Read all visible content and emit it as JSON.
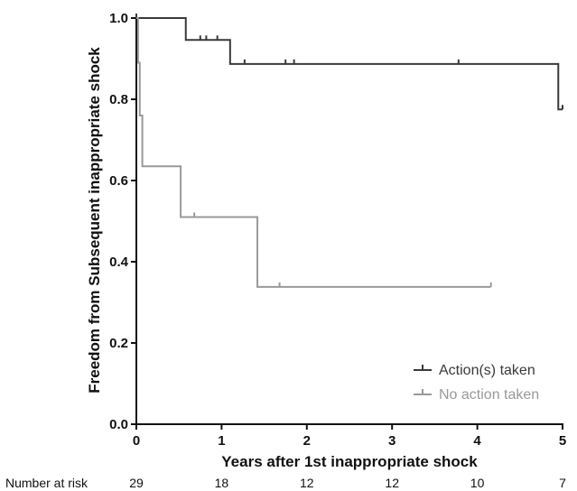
{
  "chart_data": {
    "type": "line",
    "title": "",
    "xlabel": "Years after 1st inappropriate shock",
    "ylabel": "Freedom from Subsequent inappropriate shock",
    "xlim": [
      0,
      5
    ],
    "ylim": [
      0,
      1.0
    ],
    "x_ticks": [
      0,
      1,
      2,
      3,
      4,
      5
    ],
    "y_ticks": [
      0.0,
      0.2,
      0.4,
      0.6,
      0.8,
      1.0
    ],
    "x_tick_labels": [
      "0",
      "1",
      "2",
      "3",
      "4",
      "5"
    ],
    "y_tick_labels": [
      "0.0",
      "0.2",
      "0.4",
      "0.6",
      "0.8",
      "1.0"
    ],
    "grid": false,
    "legend_position": "bottom-right",
    "series": [
      {
        "name": "Action(s) taken",
        "color": "#3a3a3a",
        "steps": [
          [
            0,
            1.0
          ],
          [
            0.58,
            0.946
          ],
          [
            1.1,
            0.887
          ],
          [
            4.95,
            0.775
          ],
          [
            5.0,
            0.775
          ]
        ],
        "censored": [
          1.27,
          0.0,
          0.75,
          0.82,
          0.95,
          1.75,
          1.85,
          3.78,
          5.0
        ]
      },
      {
        "name": "No action taken",
        "color": "#999999",
        "steps": [
          [
            0,
            1.0
          ],
          [
            0.02,
            0.89
          ],
          [
            0.04,
            0.76
          ],
          [
            0.07,
            0.635
          ],
          [
            0.52,
            0.51
          ],
          [
            1.42,
            0.338
          ],
          [
            4.16,
            0.338
          ]
        ],
        "censored": [
          0.68,
          1.68,
          4.16
        ]
      }
    ],
    "number_at_risk": {
      "label": "Number at risk",
      "values": [
        "29",
        "18",
        "12",
        "12",
        "10",
        "7"
      ]
    }
  }
}
